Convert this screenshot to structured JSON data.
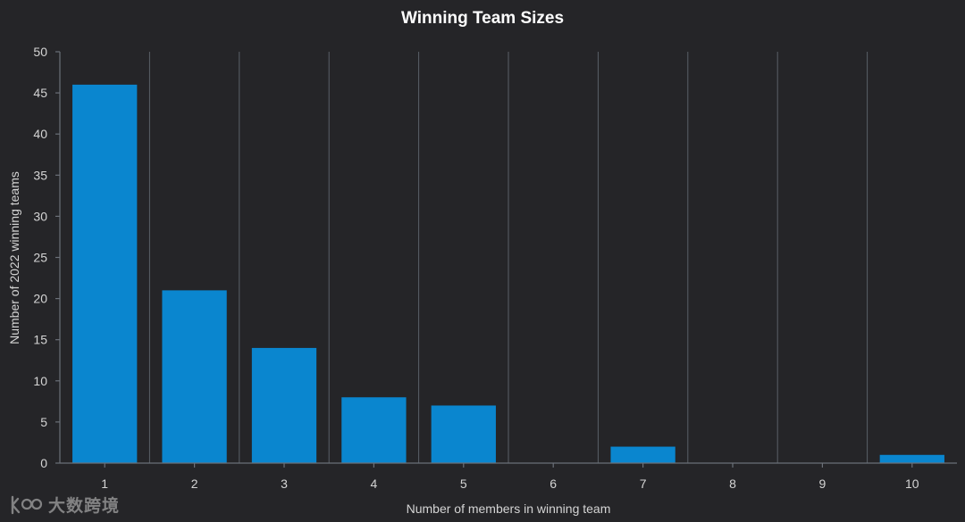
{
  "chart_data": {
    "type": "bar",
    "title": "Winning Team Sizes",
    "xlabel": "Number of members in winning team",
    "ylabel": "Number of 2022 winning teams",
    "categories": [
      "1",
      "2",
      "3",
      "4",
      "5",
      "6",
      "7",
      "8",
      "9",
      "10"
    ],
    "values": [
      46,
      21,
      14,
      8,
      7,
      0,
      2,
      0,
      0,
      1
    ],
    "ylim": [
      0,
      50
    ],
    "yticks": [
      0,
      5,
      10,
      15,
      20,
      25,
      30,
      35,
      40,
      45,
      50
    ],
    "grid": "vertical",
    "bar_color": "#0a86cf",
    "background": "#252528"
  },
  "watermark": {
    "text": "大数跨境"
  }
}
